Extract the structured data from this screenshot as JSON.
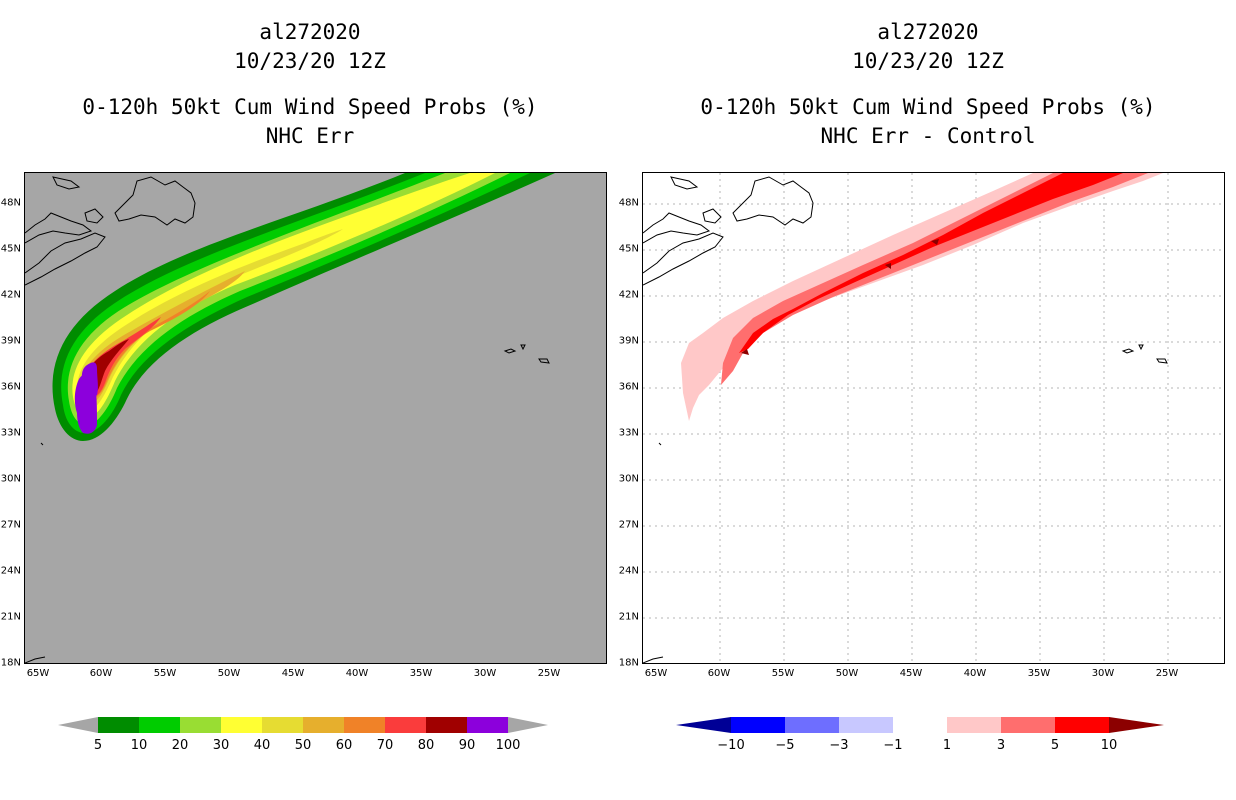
{
  "left": {
    "title": {
      "storm_id": "al272020",
      "date": "10/23/20 12Z",
      "product": "0-120h 50kt Cum Wind Speed Probs (%)",
      "subtitle": "NHC Err"
    }
  },
  "right": {
    "title": {
      "storm_id": "al272020",
      "date": "10/23/20 12Z",
      "product": "0-120h 50kt Cum Wind Speed Probs (%)",
      "subtitle": "NHC Err - Control"
    }
  },
  "axes": {
    "lat_ticks": [
      "48N",
      "45N",
      "42N",
      "39N",
      "36N",
      "33N",
      "30N",
      "27N",
      "24N",
      "21N",
      "18N"
    ],
    "lon_ticks": [
      "65W",
      "60W",
      "55W",
      "50W",
      "45W",
      "40W",
      "35W",
      "30W",
      "25W"
    ]
  },
  "chart_data": [
    {
      "type": "heatmap",
      "title": "0-120h 50kt Cum Wind Speed Probs (%)",
      "subtitle": "NHC Err",
      "lon_range": [
        -65.5,
        -20.5
      ],
      "lat_range": [
        18,
        50
      ],
      "units": "%",
      "colorbar": {
        "levels": [
          5,
          10,
          20,
          30,
          40,
          50,
          60,
          70,
          80,
          90,
          100
        ],
        "colors": [
          "#008c00",
          "#00cc00",
          "#99dd33",
          "#ffff33",
          "#e6dc32",
          "#e6af2d",
          "#f08228",
          "#fa3c3c",
          "#a00000",
          "#8c00dc"
        ],
        "under_color": "#a6a6a6",
        "over_color": "#a6a6a6"
      },
      "background_color": "#a6a6a6"
    },
    {
      "type": "heatmap",
      "title": "0-120h 50kt Cum Wind Speed Probs (%)",
      "subtitle": "NHC Err - Control",
      "lon_range": [
        -65.5,
        -20.5
      ],
      "lat_range": [
        18,
        50
      ],
      "units": "%",
      "colorbar": {
        "levels": [
          -10,
          -5,
          -3,
          -1,
          1,
          3,
          5,
          10
        ],
        "colors": [
          "#0000ff",
          "#6e6eff",
          "#c8c8ff",
          "#ffffff",
          "#ffc8c8",
          "#ff6e6e",
          "#ff0000"
        ],
        "under_color": "#000096",
        "over_color": "#8c0000"
      },
      "grid": true,
      "background_color": "#ffffff"
    }
  ]
}
